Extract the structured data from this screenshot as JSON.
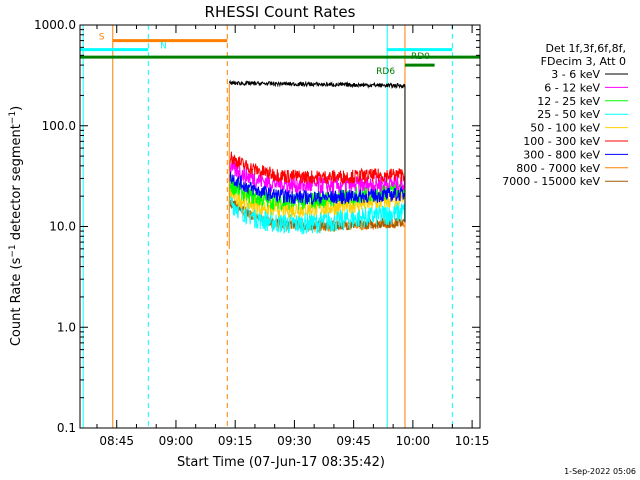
{
  "chart_data": {
    "type": "line",
    "title": "RHESSI Count Rates",
    "xlabel": "Start Time (07-Jun-17 08:35:42)",
    "ylabel": "Count Rate (s",
    "ylabel_exp": "−1",
    "ylabel_mid": " detector segment",
    "ylabel_exp2": "−1",
    "ylabel_end": ")",
    "y_scale": "log",
    "ylim": [
      0.1,
      1000.0
    ],
    "xlim": [
      "08:35:42",
      "10:17:00"
    ],
    "x_ticks": [
      "08:45",
      "09:00",
      "09:15",
      "09:30",
      "09:45",
      "10:00",
      "10:15"
    ],
    "y_ticks": [
      "0.1",
      "1.0",
      "10.0",
      "100.0",
      "1000.0"
    ],
    "legend_placement": "right",
    "legend_header": [
      "Det 1f,3f,6f,8f,",
      "FDecim 3, Att 0"
    ],
    "timestamp": "1-Sep-2022 05:06",
    "series": [
      {
        "name": "3 - 6 keV",
        "color": "#000000",
        "start": 265,
        "end": 250,
        "noise": 0.02
      },
      {
        "name": "6 - 12 keV",
        "color": "#ff00ff",
        "start": 40,
        "end": 27,
        "min": 24,
        "noise": 0.09
      },
      {
        "name": "12 - 25 keV",
        "color": "#00ff00",
        "start": 27,
        "end": 24,
        "min": 15,
        "noise": 0.09
      },
      {
        "name": "25 - 50 keV",
        "color": "#00ffff",
        "start": 18,
        "end": 14,
        "min": 9,
        "noise": 0.11
      },
      {
        "name": "50 - 100 keV",
        "color": "#ffd000",
        "start": 22,
        "end": 19,
        "min": 13,
        "noise": 0.09
      },
      {
        "name": "100 - 300 keV",
        "color": "#ff0000",
        "start": 50,
        "end": 33,
        "min": 29,
        "noise": 0.07
      },
      {
        "name": "300 - 800 keV",
        "color": "#0000ff",
        "start": 32,
        "end": 21,
        "min": 18,
        "noise": 0.07
      },
      {
        "name": "800 - 7000 keV",
        "color": "#ff8000",
        "start": 18,
        "end": 11,
        "min": 9,
        "noise": 0.05
      },
      {
        "name": "7000 - 15000 keV",
        "color": "#a05a00",
        "start": 18,
        "end": 11,
        "min": 9.5,
        "noise": 0.05
      }
    ],
    "data_window": {
      "start": "09:13:30",
      "end": "09:58:00"
    },
    "flags": [
      {
        "label": "S",
        "color": "#ff8000",
        "start": "08:44:00",
        "end": "09:13:00",
        "level": 700
      },
      {
        "label": "N",
        "color": "#00ffff",
        "start": "08:35:42",
        "end": "08:53:00",
        "level": 570
      },
      {
        "label": "N",
        "color": "#00ffff",
        "start": "09:53:30",
        "end": "10:10:00",
        "level": 570
      },
      {
        "label": "",
        "color": "#008000",
        "start": "08:35:42",
        "end": "10:17:00",
        "level": 480
      },
      {
        "label": "RD0",
        "color": "#008000",
        "start": "09:58:00",
        "end": "10:05:30",
        "level": 400
      },
      {
        "label": "RD6",
        "color": "#008000",
        "start": "",
        "end": "",
        "level": 400
      }
    ],
    "vlines": [
      {
        "time": "08:36:30",
        "color": "#00ffff",
        "style": "solid"
      },
      {
        "time": "08:44:00",
        "color": "#ff8000",
        "style": "solid"
      },
      {
        "time": "08:53:00",
        "color": "#00ffff",
        "style": "dashed"
      },
      {
        "time": "09:13:00",
        "color": "#ff8000",
        "style": "dashed"
      },
      {
        "time": "09:53:30",
        "color": "#00ffff",
        "style": "solid"
      },
      {
        "time": "09:58:00",
        "color": "#ff8000",
        "style": "solid"
      },
      {
        "time": "10:10:00",
        "color": "#00ffff",
        "style": "dashed"
      }
    ]
  }
}
